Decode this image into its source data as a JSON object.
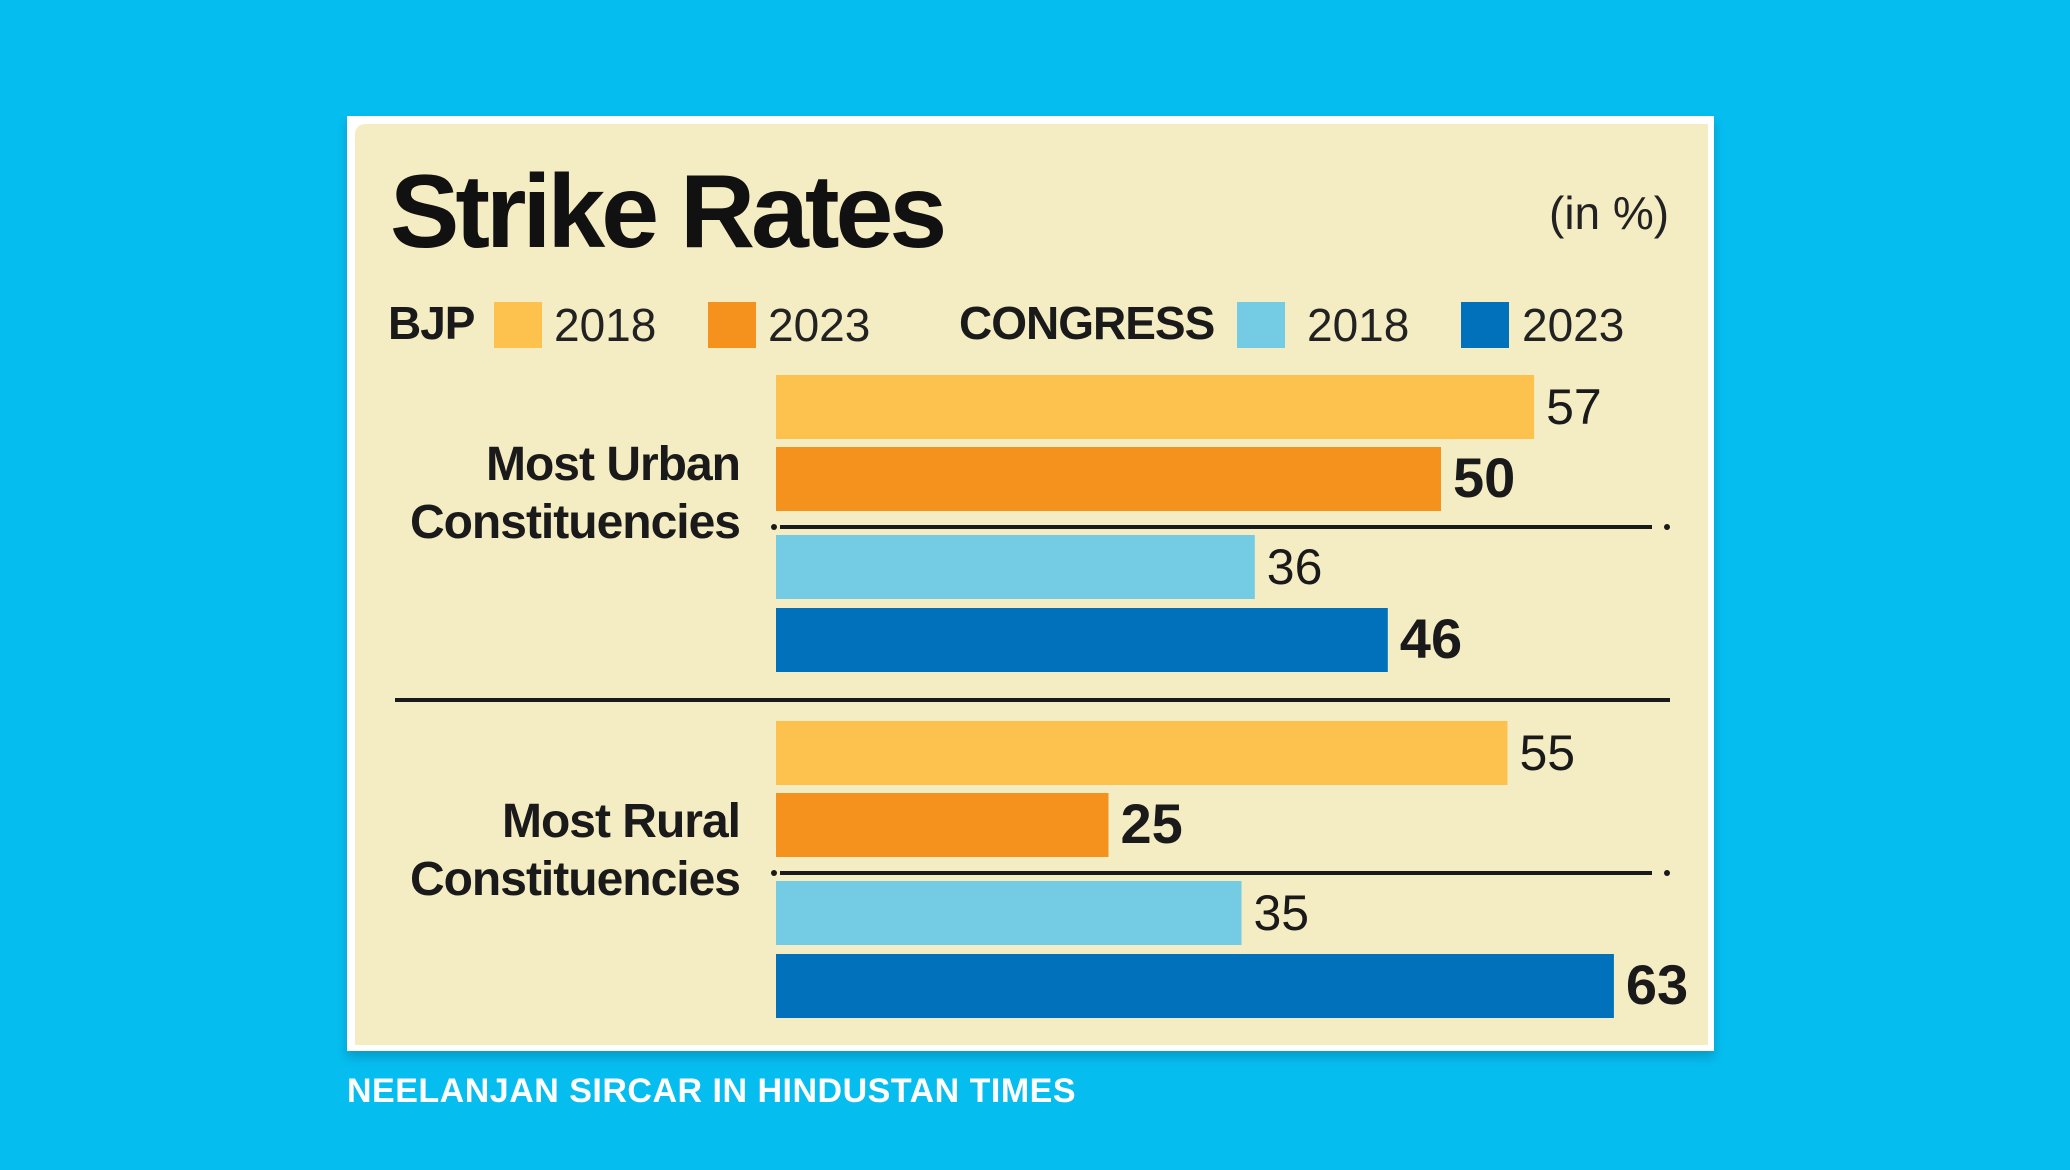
{
  "chart_data": {
    "type": "bar",
    "title": "Strike Rates",
    "unit": "(in %)",
    "legend": {
      "parties": [
        {
          "name": "BJP",
          "years": [
            "2018",
            "2023"
          ],
          "colors": [
            "#FDC24E",
            "#F5921E"
          ]
        },
        {
          "name": "CONGRESS",
          "years": [
            "2018",
            "2023"
          ],
          "colors": [
            "#73CCE3",
            "#0071BA"
          ]
        }
      ]
    },
    "groups": [
      {
        "label_lines": [
          "Most Urban",
          "Constituencies"
        ],
        "bars": [
          {
            "party": "BJP",
            "year": "2018",
            "value": 57,
            "label": "57"
          },
          {
            "party": "BJP",
            "year": "2023",
            "value": 50,
            "label": "50"
          },
          {
            "party": "CONGRESS",
            "year": "2018",
            "value": 36,
            "label": "36"
          },
          {
            "party": "CONGRESS",
            "year": "2023",
            "value": 46,
            "label": "46"
          }
        ]
      },
      {
        "label_lines": [
          "Most Rural",
          "Constituencies"
        ],
        "bars": [
          {
            "party": "BJP",
            "year": "2018",
            "value": 55,
            "label": "55"
          },
          {
            "party": "BJP",
            "year": "2023",
            "value": 25,
            "label": "25"
          },
          {
            "party": "CONGRESS",
            "year": "2018",
            "value": 35,
            "label": "35"
          },
          {
            "party": "CONGRESS",
            "year": "2023",
            "value": 63,
            "label": "63"
          }
        ]
      }
    ]
  },
  "source": "NEELANJAN SIRCAR IN HINDUSTAN TIMES"
}
